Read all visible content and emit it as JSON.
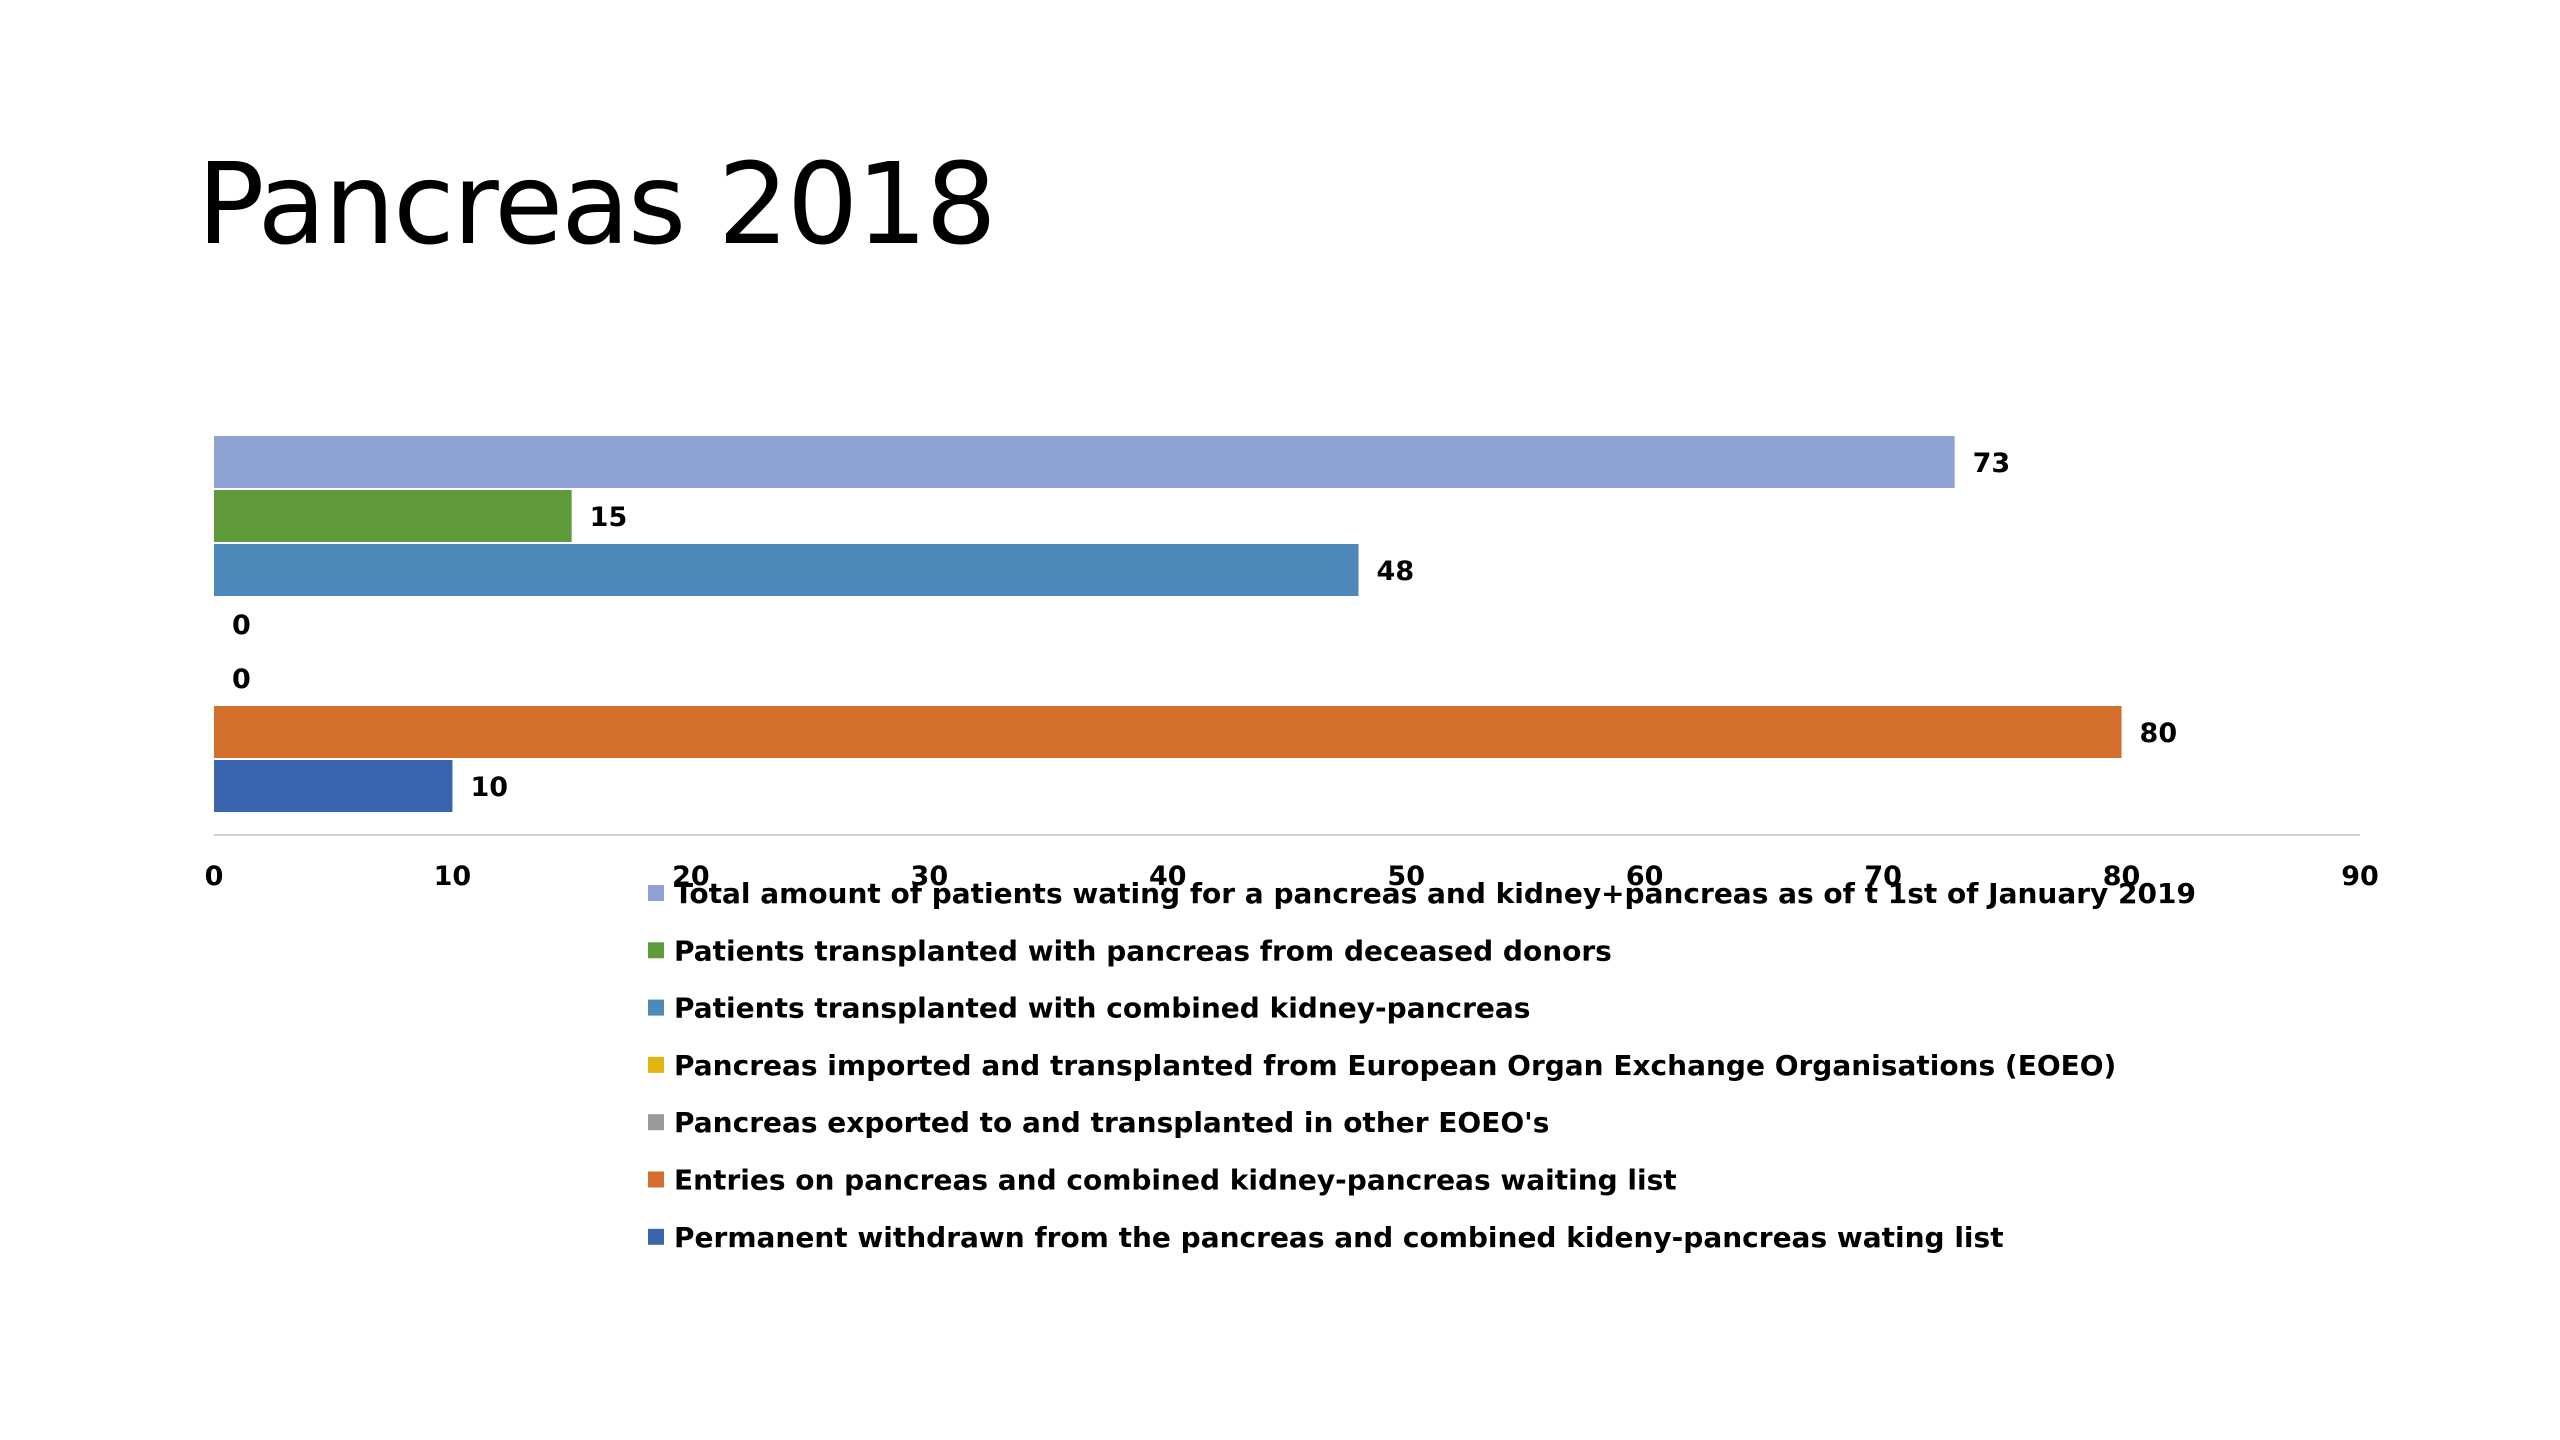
{
  "slide": {
    "title": "Pancreas 2018"
  },
  "chart_data": {
    "type": "bar",
    "orientation": "horizontal",
    "title": "",
    "xlabel": "",
    "ylabel": "",
    "xlim": [
      0,
      90
    ],
    "x_ticks": [
      0,
      10,
      20,
      30,
      40,
      50,
      60,
      70,
      80,
      90
    ],
    "grid": false,
    "legend_position": "bottom",
    "data_labels": true,
    "series": [
      {
        "name": "Total amount of patients wating for a pancreas and kidney+pancreas as of t 1st of January 2019",
        "value": 73,
        "color": "#8FA2D4"
      },
      {
        "name": "Patients transplanted with pancreas from deceased donors",
        "value": 15,
        "color": "#5F9B3A"
      },
      {
        "name": "Patients transplanted with combined kidney-pancreas",
        "value": 48,
        "color": "#4F89BC"
      },
      {
        "name": "Pancreas imported and transplanted from European Organ Exchange Organisations (EOEO)",
        "value": 0,
        "color": "#E5B30F"
      },
      {
        "name": "Pancreas exported to and transplanted in other EOEO's",
        "value": 0,
        "color": "#9A9A9A"
      },
      {
        "name": "Entries on pancreas and combined kidney-pancreas waiting list",
        "value": 80,
        "color": "#D46E2C"
      },
      {
        "name": "Permanent withdrawn from the pancreas and combined kideny-pancreas wating list",
        "value": 10,
        "color": "#3B64AE"
      }
    ]
  }
}
